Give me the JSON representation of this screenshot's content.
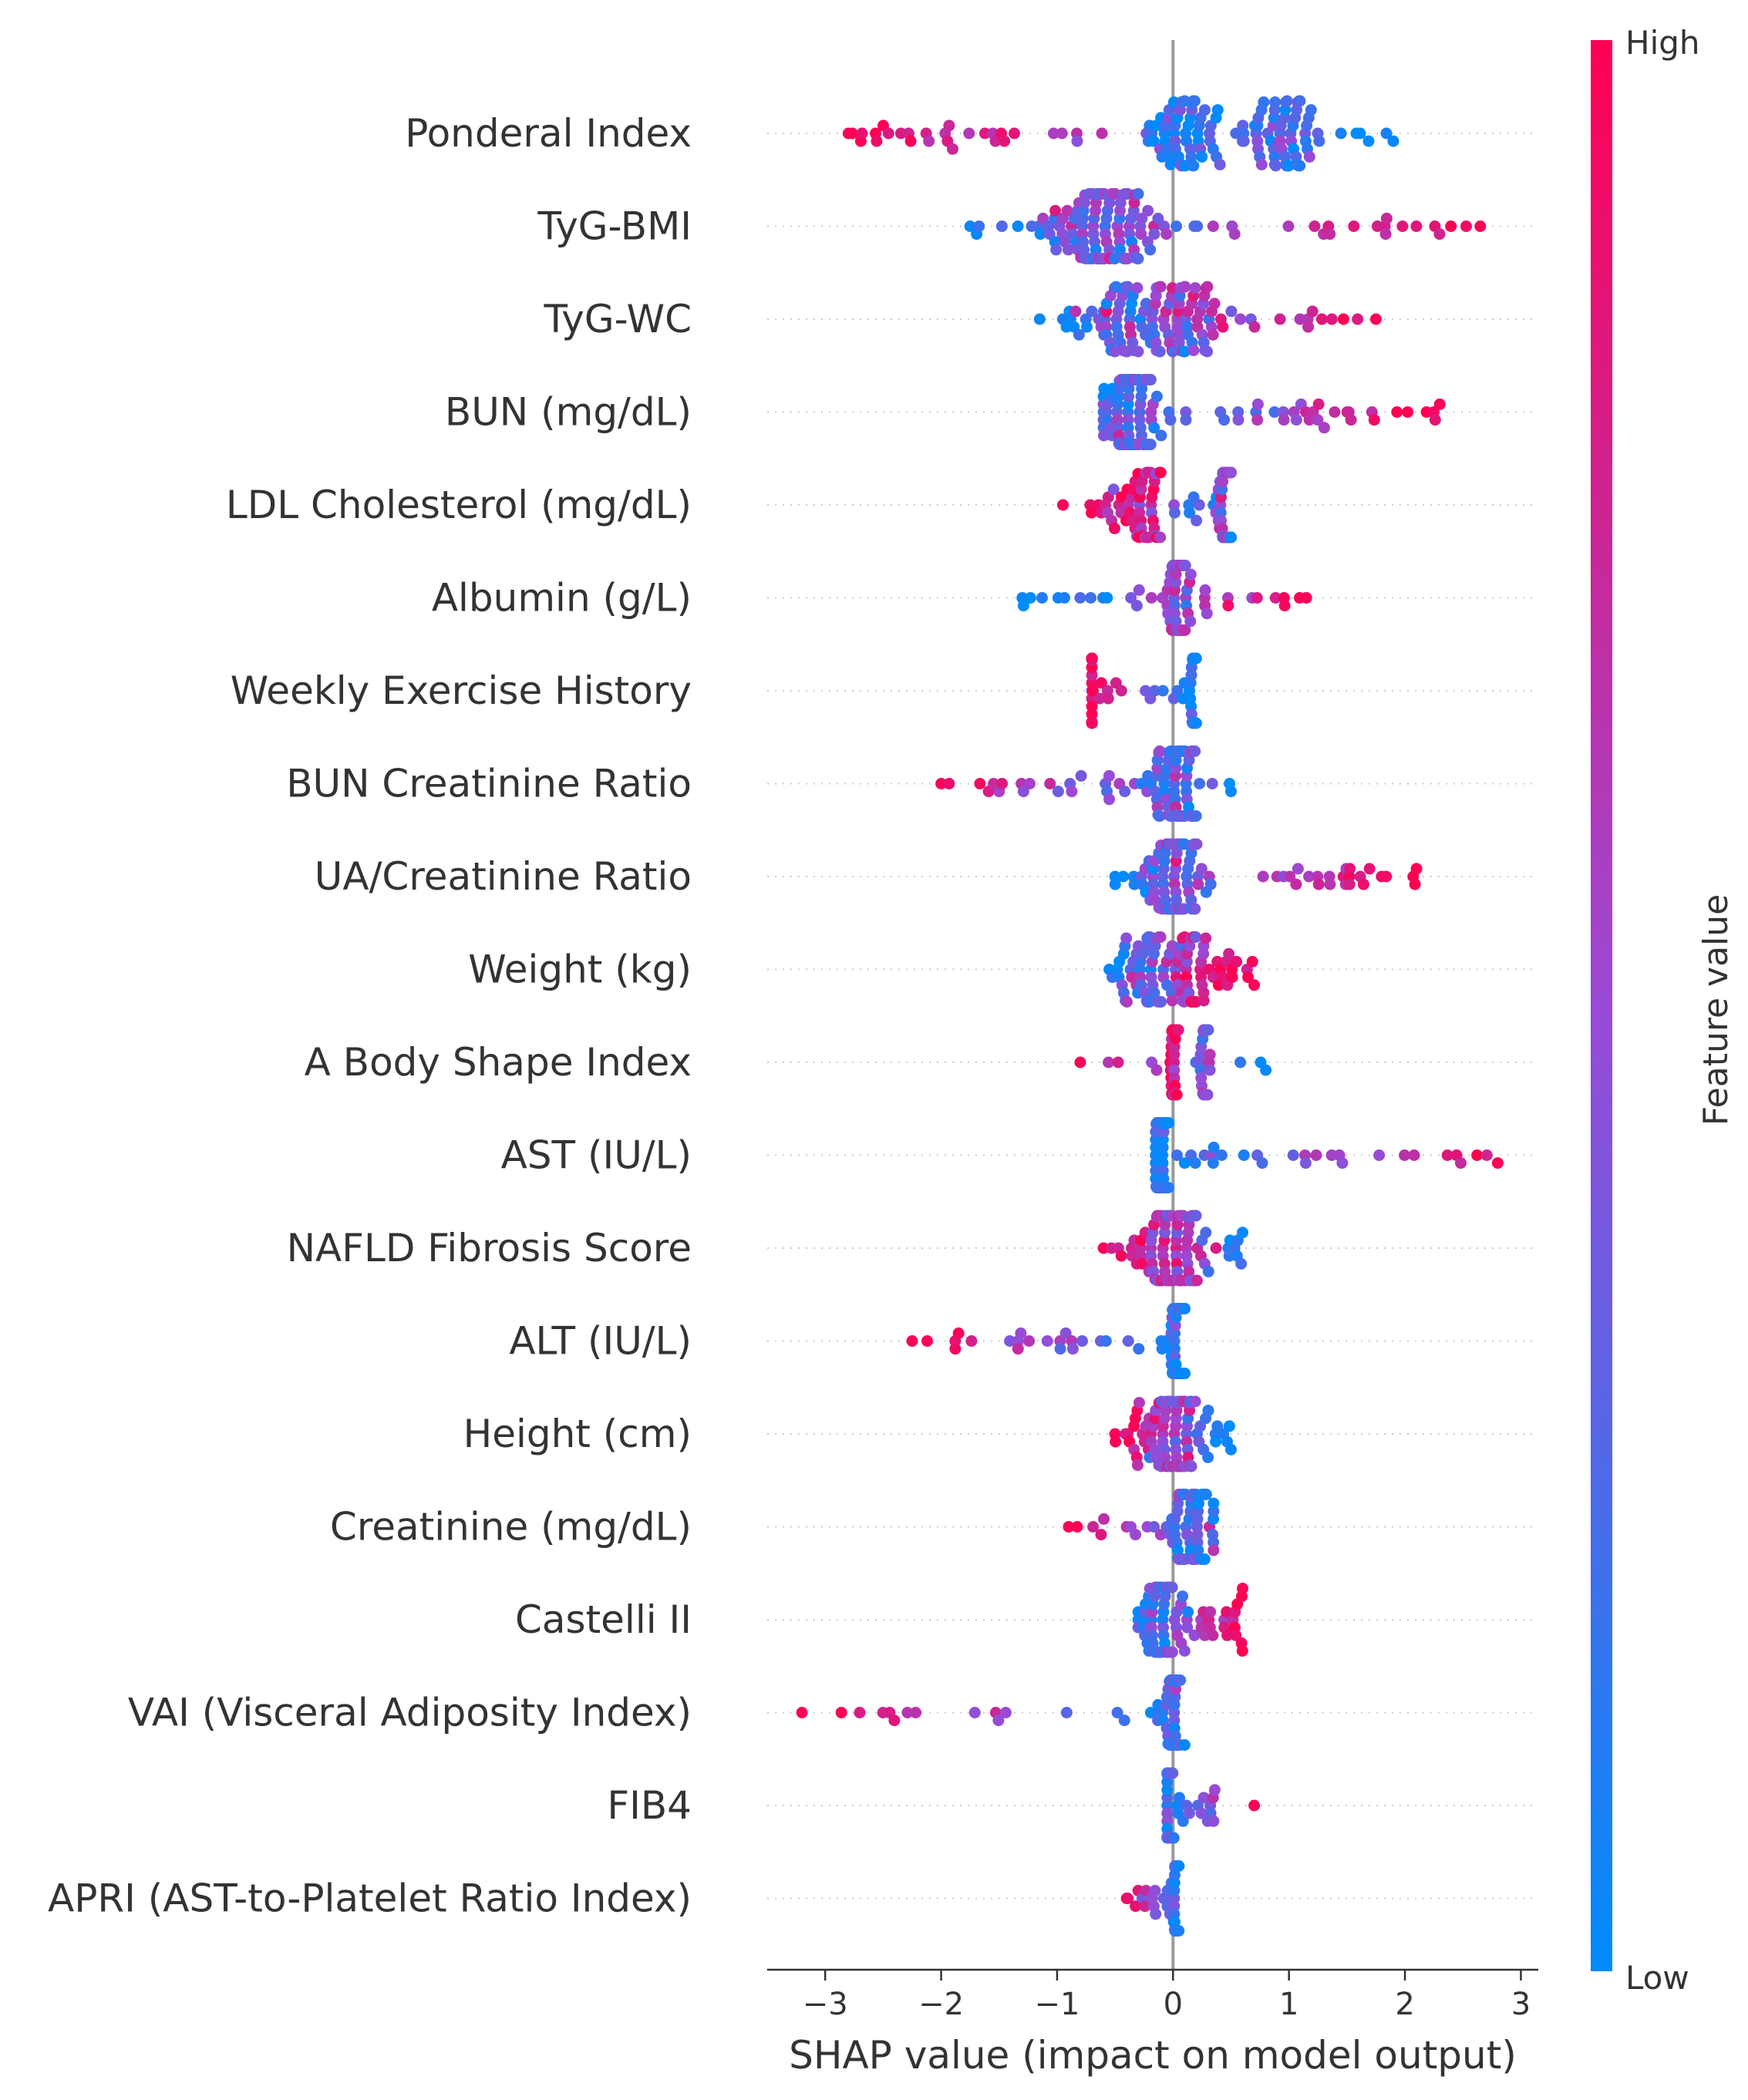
{
  "chart_data": {
    "type": "scatter",
    "subtype": "beeswarm",
    "title": "",
    "xlabel": "SHAP value (impact on model output)",
    "ylabel": "",
    "xlim": [
      -3.5,
      3.15
    ],
    "x_ticks": [
      -3,
      -2,
      -1,
      0,
      1,
      2,
      3
    ],
    "x_tick_labels": [
      "−3",
      "−2",
      "−1",
      "0",
      "1",
      "2",
      "3"
    ],
    "grid": false,
    "colorbar": {
      "title": "Feature value",
      "high_label": "High",
      "low_label": "Low",
      "high_color": "#ff0052",
      "low_color": "#008bfb",
      "position": "right"
    },
    "features": [
      {
        "name": "Ponderal Index",
        "min": -2.8,
        "max": 1.9,
        "skew": 0.6,
        "n": 150,
        "dir": -1,
        "clusters": [
          {
            "x": 0.1,
            "y": 0.1,
            "w": 0.45
          },
          {
            "x": 0.95,
            "y": 0.25,
            "w": 0.35
          }
        ]
      },
      {
        "name": "TyG-BMI",
        "min": -1.75,
        "max": 2.65,
        "skew": -0.5,
        "n": 150,
        "dir": 1,
        "clusters": [
          {
            "x": -0.6,
            "y": 0.4,
            "w": 0.5
          }
        ]
      },
      {
        "name": "TyG-WC",
        "min": -1.15,
        "max": 1.75,
        "skew": 0,
        "n": 130,
        "dir": 1,
        "clusters": [
          {
            "x": -0.5,
            "y": 0.35,
            "w": 0.4
          },
          {
            "x": 0.1,
            "y": 0.5,
            "w": 0.35
          }
        ]
      },
      {
        "name": "BUN (mg/dL)",
        "min": -0.6,
        "max": 2.3,
        "skew": 0.9,
        "n": 140,
        "dir": 1,
        "clusters": [
          {
            "x": -0.35,
            "y": 0.3,
            "w": 0.25
          }
        ]
      },
      {
        "name": "LDL Cholesterol (mg/dL)",
        "min": -0.95,
        "max": 0.5,
        "skew": 0,
        "n": 110,
        "dir": -1,
        "clusters": [
          {
            "x": 0.45,
            "y": 0.5,
            "w": 0.1
          },
          {
            "x": -0.3,
            "y": 0.8,
            "w": 0.3
          }
        ]
      },
      {
        "name": "Albumin (g/L)",
        "min": -1.3,
        "max": 1.15,
        "skew": 0,
        "n": 100,
        "dir": 1,
        "clusters": [
          {
            "x": 0.05,
            "y": 0.5,
            "w": 0.1
          }
        ]
      },
      {
        "name": "Weekly Exercise History",
        "min": -0.7,
        "max": 0.2,
        "skew": 0,
        "n": 60,
        "dir": -1,
        "clusters": [
          {
            "x": -0.72,
            "y": 0.95,
            "w": 0.04
          },
          {
            "x": 0.18,
            "y": 0.1,
            "w": 0.04
          }
        ]
      },
      {
        "name": "BUN Creatinine Ratio",
        "min": -2.0,
        "max": 0.5,
        "skew": 0.2,
        "n": 110,
        "dir": -1,
        "clusters": [
          {
            "x": 0.05,
            "y": 0.3,
            "w": 0.2
          }
        ]
      },
      {
        "name": "UA/Creatinine Ratio",
        "min": -0.5,
        "max": 2.1,
        "skew": 0.8,
        "n": 120,
        "dir": 1,
        "clusters": [
          {
            "x": 0.0,
            "y": 0.4,
            "w": 0.3
          }
        ]
      },
      {
        "name": "Weight (kg)",
        "min": -0.55,
        "max": 0.7,
        "skew": 0,
        "n": 110,
        "dir": 1,
        "clusters": [
          {
            "x": -0.2,
            "y": 0.35,
            "w": 0.3
          },
          {
            "x": 0.2,
            "y": 0.75,
            "w": 0.25
          }
        ]
      },
      {
        "name": "A Body Shape Index",
        "min": -0.8,
        "max": 0.8,
        "skew": 0,
        "n": 60,
        "dir": -1,
        "clusters": [
          {
            "x": 0.0,
            "y": 0.85,
            "w": 0.04
          },
          {
            "x": 0.28,
            "y": 0.45,
            "w": 0.05
          }
        ]
      },
      {
        "name": "AST (IU/L)",
        "min": -0.15,
        "max": 2.8,
        "skew": 0.9,
        "n": 90,
        "dir": 1,
        "clusters": [
          {
            "x": -0.1,
            "y": 0.1,
            "w": 0.08
          }
        ]
      },
      {
        "name": "NAFLD Fibrosis Score",
        "min": -0.6,
        "max": 0.6,
        "skew": 0,
        "n": 110,
        "dir": -1,
        "clusters": [
          {
            "x": 0.0,
            "y": 0.6,
            "w": 0.3
          }
        ]
      },
      {
        "name": "ALT (IU/L)",
        "min": -2.25,
        "max": 0.1,
        "skew": 0.5,
        "n": 80,
        "dir": -1,
        "clusters": [
          {
            "x": 0.05,
            "y": 0.1,
            "w": 0.1
          }
        ]
      },
      {
        "name": "Height (cm)",
        "min": -0.5,
        "max": 0.5,
        "skew": 0,
        "n": 110,
        "dir": -1,
        "clusters": [
          {
            "x": 0.0,
            "y": 0.55,
            "w": 0.3
          }
        ]
      },
      {
        "name": "Creatinine (mg/dL)",
        "min": -0.9,
        "max": 0.35,
        "skew": 0.3,
        "n": 90,
        "dir": -1,
        "clusters": [
          {
            "x": 0.15,
            "y": 0.25,
            "w": 0.2
          }
        ]
      },
      {
        "name": "Castelli II",
        "min": -0.3,
        "max": 0.6,
        "skew": 0,
        "n": 100,
        "dir": 1,
        "clusters": [
          {
            "x": -0.1,
            "y": 0.3,
            "w": 0.2
          }
        ]
      },
      {
        "name": "VAI (Visceral Adiposity Index)",
        "min": -3.2,
        "max": 0.1,
        "skew": 0,
        "n": 60,
        "dir": -1,
        "clusters": [
          {
            "x": 0.0,
            "y": 0.2,
            "w": 0.08
          }
        ]
      },
      {
        "name": "FIB4",
        "min": -0.05,
        "max": 0.7,
        "skew": 0,
        "n": 50,
        "dir": 1,
        "clusters": [
          {
            "x": -0.05,
            "y": 0.2,
            "w": 0.06
          }
        ]
      },
      {
        "name": "APRI (AST-to-Platelet Ratio Index)",
        "min": -0.4,
        "max": 0.05,
        "skew": 0,
        "n": 50,
        "dir": -1,
        "clusters": [
          {
            "x": 0.02,
            "y": 0.2,
            "w": 0.04
          }
        ]
      }
    ]
  }
}
